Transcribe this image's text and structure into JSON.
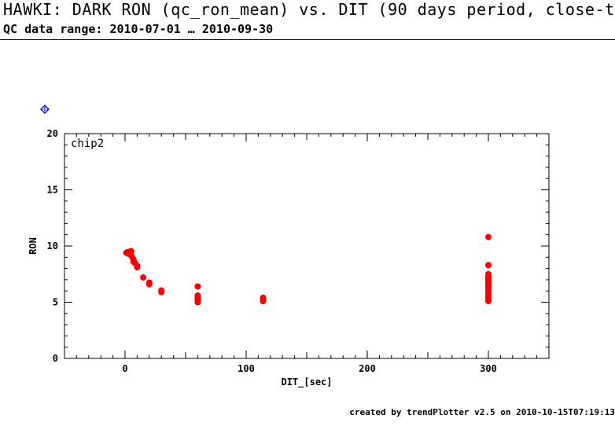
{
  "header": {
    "title": "HAWKI: DARK RON (qc_ron_mean) vs. DIT (90 days period, close-t",
    "subtitle": "QC data range: 2010-07-01 … 2010-09-30"
  },
  "badge": {
    "label": "6",
    "icon": "diamond-badge-icon",
    "color": "#1a1aff"
  },
  "footer": {
    "text": "created by trendPlotter v2.5 on 2010-10-15T07:19:13"
  },
  "chart_data": {
    "type": "scatter",
    "panel_label": "chip2",
    "xlabel": "DIT_[sec]",
    "ylabel": "RON",
    "xlim": [
      -50,
      350
    ],
    "ylim": [
      0,
      20
    ],
    "xticks": [
      0,
      100,
      200,
      300
    ],
    "yticks": [
      0,
      5,
      10,
      15,
      20
    ],
    "marker_color": "#ff0000",
    "grid": false,
    "series": [
      {
        "x": [
          1,
          2,
          3,
          4,
          5,
          5,
          6,
          7,
          7,
          8,
          10,
          10,
          15,
          20,
          20,
          30,
          30,
          60,
          60,
          60,
          60,
          60,
          60,
          60,
          60,
          114,
          114,
          114,
          114,
          300,
          300,
          300,
          300,
          300,
          300,
          300,
          300,
          300,
          300,
          300,
          300,
          300,
          300,
          300,
          300,
          300,
          300,
          300,
          300
        ],
        "y": [
          9.4,
          9.45,
          9.3,
          9.5,
          9.2,
          9.55,
          9.0,
          8.6,
          8.8,
          8.5,
          8.1,
          8.25,
          7.2,
          6.6,
          6.75,
          5.9,
          6.05,
          6.4,
          5.6,
          5.5,
          5.4,
          5.3,
          5.2,
          5.1,
          5.0,
          5.4,
          5.3,
          5.2,
          5.1,
          10.8,
          8.3,
          7.5,
          7.3,
          7.2,
          7.1,
          7.0,
          6.9,
          6.8,
          6.7,
          6.6,
          6.5,
          6.4,
          6.2,
          6.0,
          5.8,
          5.6,
          5.4,
          5.3,
          5.1
        ]
      }
    ]
  }
}
